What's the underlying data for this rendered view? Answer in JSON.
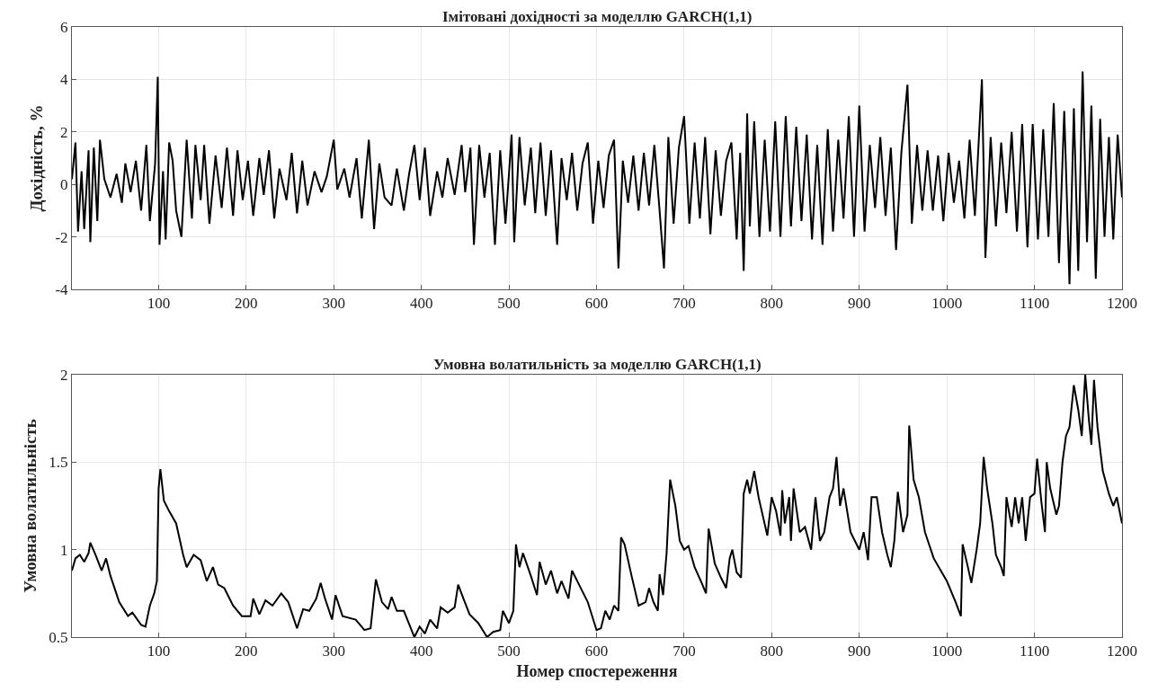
{
  "chart_data": [
    {
      "type": "line",
      "title": "Імітовані дохідності за моделлю GARCH(1,1)",
      "ylabel": "Дохідність, %",
      "xlim": [
        1,
        1200
      ],
      "ylim": [
        -4,
        6
      ],
      "xticks": [
        100,
        200,
        300,
        400,
        500,
        600,
        700,
        800,
        900,
        1000,
        1100,
        1200
      ],
      "yticks": [
        -4,
        -2,
        0,
        2,
        4,
        6
      ],
      "grid": true,
      "line_style": "solid",
      "series": [
        {
          "color": "#000000",
          "x": [
            1,
            5,
            8,
            12,
            15,
            20,
            22,
            26,
            30,
            33,
            38,
            45,
            52,
            58,
            62,
            68,
            74,
            80,
            86,
            90,
            96,
            99,
            101,
            105,
            108,
            112,
            116,
            120,
            126,
            132,
            138,
            142,
            148,
            152,
            158,
            165,
            172,
            178,
            185,
            190,
            196,
            202,
            208,
            215,
            220,
            226,
            232,
            238,
            246,
            252,
            258,
            264,
            270,
            278,
            286,
            292,
            300,
            304,
            312,
            318,
            326,
            332,
            340,
            346,
            352,
            358,
            366,
            372,
            380,
            386,
            392,
            398,
            404,
            410,
            418,
            424,
            430,
            438,
            446,
            450,
            456,
            460,
            466,
            472,
            478,
            484,
            490,
            496,
            500,
            503,
            506,
            512,
            518,
            525,
            530,
            536,
            542,
            548,
            555,
            560,
            566,
            572,
            578,
            584,
            590,
            596,
            602,
            608,
            614,
            620,
            625,
            630,
            636,
            642,
            648,
            654,
            660,
            666,
            672,
            677,
            682,
            688,
            694,
            700,
            706,
            712,
            718,
            724,
            730,
            736,
            742,
            748,
            754,
            760,
            764,
            768,
            772,
            775,
            780,
            786,
            792,
            798,
            804,
            810,
            816,
            822,
            828,
            834,
            840,
            846,
            852,
            858,
            864,
            870,
            876,
            882,
            888,
            894,
            900,
            906,
            912,
            918,
            924,
            930,
            936,
            942,
            948,
            955,
            960,
            966,
            972,
            978,
            984,
            990,
            996,
            1002,
            1008,
            1014,
            1020,
            1026,
            1032,
            1040,
            1044,
            1050,
            1056,
            1062,
            1068,
            1074,
            1080,
            1086,
            1092,
            1098,
            1104,
            1110,
            1116,
            1122,
            1128,
            1134,
            1140,
            1145,
            1150,
            1155,
            1160,
            1165,
            1170,
            1175,
            1180,
            1185,
            1190,
            1195,
            1200
          ],
          "values": [
            0.2,
            1.6,
            -1.8,
            0.5,
            -1.7,
            1.3,
            -2.2,
            1.4,
            -1.4,
            1.7,
            0.2,
            -0.5,
            0.4,
            -0.7,
            0.8,
            -0.3,
            0.9,
            -1.0,
            1.5,
            -1.4,
            0.8,
            4.1,
            -2.3,
            0.5,
            -2.1,
            1.6,
            0.9,
            -1.0,
            -2.0,
            1.7,
            -1.3,
            1.5,
            -0.6,
            1.5,
            -1.5,
            1.1,
            -0.9,
            1.4,
            -1.2,
            1.3,
            -0.6,
            0.9,
            -1.2,
            1.0,
            -0.4,
            1.3,
            -1.3,
            0.6,
            -0.6,
            1.2,
            -1.1,
            0.9,
            -0.8,
            0.5,
            -0.3,
            0.3,
            1.7,
            -0.2,
            0.6,
            -0.5,
            1.0,
            -1.3,
            1.7,
            -1.7,
            0.8,
            -0.5,
            -0.8,
            0.6,
            -1.0,
            0.4,
            1.5,
            -0.6,
            1.4,
            -1.2,
            0.5,
            -0.5,
            1.0,
            -0.4,
            1.5,
            -0.3,
            1.4,
            -2.3,
            1.5,
            -0.5,
            1.2,
            -2.3,
            1.3,
            -1.5,
            0.4,
            1.9,
            -2.2,
            1.8,
            -0.8,
            1.4,
            -1.1,
            1.6,
            -1.2,
            1.3,
            -2.3,
            1.0,
            -0.6,
            1.2,
            -1.0,
            0.8,
            1.6,
            -1.5,
            0.9,
            -0.9,
            1.1,
            1.7,
            -3.2,
            0.9,
            -0.7,
            1.1,
            -1.0,
            1.2,
            -0.8,
            1.5,
            -1.0,
            -3.2,
            1.8,
            -1.5,
            1.4,
            2.6,
            -1.5,
            1.6,
            -1.3,
            1.8,
            -1.9,
            1.3,
            -1.2,
            0.9,
            1.6,
            -2.1,
            1.2,
            -3.3,
            2.7,
            -1.6,
            2.4,
            -2.0,
            1.7,
            -1.8,
            2.4,
            -2.0,
            2.6,
            -1.6,
            2.2,
            -1.4,
            1.9,
            -2.1,
            1.5,
            -2.3,
            2.1,
            -1.8,
            1.7,
            -1.3,
            2.6,
            -2.0,
            3.0,
            -1.8,
            1.5,
            -0.9,
            1.8,
            -1.2,
            1.4,
            -2.5,
            1.2,
            3.8,
            -1.5,
            1.5,
            -1.0,
            1.3,
            -1.0,
            1.1,
            -1.4,
            1.2,
            -0.7,
            0.9,
            -1.3,
            1.7,
            -1.2,
            4.0,
            -2.8,
            1.8,
            -1.6,
            1.6,
            -1.1,
            2.0,
            -1.8,
            2.3,
            -2.4,
            2.3,
            -2.1,
            2.1,
            -2.0,
            3.1,
            -3.0,
            2.8,
            -3.8,
            2.9,
            -3.3,
            4.3,
            -2.2,
            3.0,
            -3.6,
            2.5,
            -2.0,
            1.8,
            -2.1,
            1.9,
            -0.5
          ]
        }
      ]
    },
    {
      "type": "line",
      "title": "Умовна волатильність за моделлю GARCH(1,1)",
      "xlabel": "Номер спостереження",
      "ylabel": "Умовна волатильність",
      "xlim": [
        1,
        1200
      ],
      "ylim": [
        0.5,
        2
      ],
      "xticks": [
        100,
        200,
        300,
        400,
        500,
        600,
        700,
        800,
        900,
        1000,
        1100,
        1200
      ],
      "yticks": [
        0.5,
        1,
        1.5,
        2
      ],
      "grid": true,
      "line_style": "solid",
      "series": [
        {
          "color": "#000000",
          "x": [
            1,
            5,
            10,
            15,
            20,
            22,
            28,
            35,
            40,
            45,
            55,
            65,
            70,
            80,
            85,
            90,
            95,
            98,
            100,
            102,
            106,
            112,
            120,
            128,
            132,
            140,
            148,
            155,
            162,
            168,
            175,
            185,
            195,
            205,
            208,
            215,
            222,
            230,
            240,
            248,
            258,
            265,
            272,
            280,
            285,
            290,
            298,
            302,
            310,
            325,
            335,
            342,
            348,
            355,
            362,
            366,
            372,
            380,
            392,
            398,
            404,
            410,
            418,
            422,
            430,
            438,
            442,
            448,
            455,
            465,
            475,
            482,
            490,
            493,
            500,
            505,
            508,
            512,
            516,
            525,
            532,
            535,
            542,
            548,
            555,
            560,
            568,
            572,
            580,
            590,
            600,
            605,
            610,
            615,
            620,
            625,
            628,
            632,
            640,
            648,
            656,
            660,
            665,
            670,
            672,
            676,
            680,
            684,
            690,
            695,
            700,
            705,
            712,
            720,
            725,
            728,
            735,
            742,
            748,
            752,
            755,
            760,
            765,
            768,
            772,
            775,
            780,
            785,
            795,
            800,
            805,
            810,
            812,
            815,
            820,
            822,
            825,
            832,
            838,
            845,
            850,
            855,
            860,
            866,
            870,
            874,
            878,
            882,
            890,
            895,
            900,
            905,
            910,
            914,
            920,
            926,
            932,
            936,
            940,
            944,
            950,
            955,
            957,
            962,
            968,
            975,
            985,
            1000,
            1010,
            1016,
            1018,
            1024,
            1028,
            1034,
            1038,
            1042,
            1046,
            1052,
            1056,
            1062,
            1065,
            1068,
            1074,
            1078,
            1082,
            1086,
            1090,
            1095,
            1100,
            1103,
            1108,
            1112,
            1114,
            1118,
            1125,
            1128,
            1132,
            1136,
            1140,
            1145,
            1150,
            1154,
            1158,
            1162,
            1165,
            1168,
            1172,
            1178,
            1185,
            1190,
            1194,
            1200
          ],
          "values": [
            0.88,
            0.95,
            0.97,
            0.93,
            0.98,
            1.04,
            0.97,
            0.88,
            0.95,
            0.85,
            0.7,
            0.62,
            0.64,
            0.57,
            0.56,
            0.68,
            0.75,
            0.82,
            1.35,
            1.46,
            1.28,
            1.22,
            1.15,
            0.97,
            0.9,
            0.97,
            0.94,
            0.82,
            0.9,
            0.8,
            0.78,
            0.68,
            0.62,
            0.62,
            0.72,
            0.63,
            0.71,
            0.68,
            0.75,
            0.7,
            0.55,
            0.66,
            0.65,
            0.72,
            0.81,
            0.72,
            0.6,
            0.74,
            0.62,
            0.6,
            0.54,
            0.55,
            0.83,
            0.7,
            0.66,
            0.73,
            0.65,
            0.65,
            0.5,
            0.56,
            0.52,
            0.6,
            0.55,
            0.67,
            0.64,
            0.67,
            0.8,
            0.72,
            0.63,
            0.58,
            0.5,
            0.53,
            0.54,
            0.65,
            0.58,
            0.65,
            1.03,
            0.9,
            0.98,
            0.85,
            0.74,
            0.93,
            0.8,
            0.88,
            0.75,
            0.82,
            0.72,
            0.88,
            0.8,
            0.7,
            0.54,
            0.55,
            0.65,
            0.6,
            0.68,
            0.65,
            1.07,
            1.03,
            0.85,
            0.68,
            0.7,
            0.78,
            0.7,
            0.65,
            0.86,
            0.74,
            0.98,
            1.4,
            1.25,
            1.05,
            1.0,
            1.02,
            0.9,
            0.81,
            0.75,
            1.12,
            0.92,
            0.84,
            0.78,
            0.95,
            1.0,
            0.87,
            0.84,
            1.32,
            1.4,
            1.32,
            1.45,
            1.3,
            1.08,
            1.3,
            1.22,
            1.08,
            1.34,
            1.15,
            1.3,
            1.05,
            1.35,
            1.1,
            1.13,
            1.0,
            1.3,
            1.05,
            1.1,
            1.3,
            1.35,
            1.53,
            1.25,
            1.35,
            1.1,
            1.05,
            1.0,
            1.1,
            0.94,
            1.3,
            1.3,
            1.1,
            0.97,
            0.9,
            1.05,
            1.33,
            1.1,
            1.2,
            1.71,
            1.4,
            1.3,
            1.1,
            0.95,
            0.82,
            0.7,
            0.62,
            1.03,
            0.9,
            0.81,
            1.0,
            1.15,
            1.53,
            1.35,
            1.15,
            0.97,
            0.9,
            0.85,
            1.3,
            1.13,
            1.3,
            1.15,
            1.3,
            1.05,
            1.3,
            1.32,
            1.52,
            1.27,
            1.1,
            1.5,
            1.35,
            1.2,
            1.25,
            1.5,
            1.65,
            1.7,
            1.94,
            1.8,
            1.65,
            2.0,
            1.75,
            1.6,
            1.97,
            1.7,
            1.45,
            1.32,
            1.25,
            1.3,
            1.15
          ]
        }
      ]
    }
  ]
}
